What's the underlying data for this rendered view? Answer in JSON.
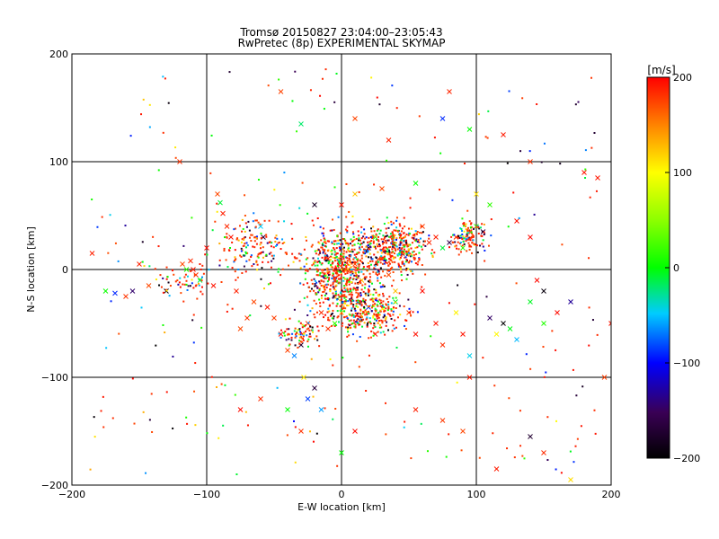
{
  "chart_data": {
    "type": "scatter",
    "title": "Tromsø 20150827 23:04:00–23:05:43",
    "subtitle": "RwPretec (8p) EXPERIMENTAL SKYMAP",
    "xlabel": "E-W location [km]",
    "ylabel": "N-S location [km]",
    "xlim": [
      -200,
      200
    ],
    "ylim": [
      -200,
      200
    ],
    "x_ticks": [
      "−200",
      "−100",
      "0",
      "100",
      "200"
    ],
    "y_ticks": [
      "−200",
      "−100",
      "0",
      "100",
      "200"
    ],
    "x_tick_values": [
      -200,
      -100,
      0,
      100,
      200
    ],
    "y_tick_values": [
      -200,
      -100,
      0,
      100,
      200
    ],
    "grid": true,
    "colorbar": {
      "label": "[m/s]",
      "range": [
        -200,
        200
      ],
      "tick_values": [
        200,
        100,
        0,
        -100,
        -200
      ],
      "tick_labels": [
        "200",
        "100",
        "0",
        "−100",
        "−200"
      ]
    },
    "marker_legend_note": "",
    "series": [
      {
        "marker": "x",
        "points": [
          [
            -185,
            15
          ],
          [
            -175,
            -20
          ],
          [
            -168,
            -22
          ],
          [
            -160,
            -25
          ],
          [
            -155,
            -20
          ],
          [
            -150,
            5
          ],
          [
            -143,
            -15
          ],
          [
            -130,
            -20
          ],
          [
            -118,
            5
          ],
          [
            -115,
            0
          ],
          [
            -112,
            8
          ],
          [
            -110,
            0
          ],
          [
            -108,
            -5
          ],
          [
            -105,
            -10
          ],
          [
            -100,
            20
          ],
          [
            -95,
            -15
          ],
          [
            -92,
            70
          ],
          [
            -90,
            62
          ],
          [
            -88,
            52
          ],
          [
            -85,
            40
          ],
          [
            -82,
            30
          ],
          [
            -78,
            -20
          ],
          [
            -75,
            -55
          ],
          [
            -70,
            -45
          ],
          [
            -65,
            -30
          ],
          [
            -60,
            40
          ],
          [
            -58,
            30
          ],
          [
            -55,
            -35
          ],
          [
            -50,
            -45
          ],
          [
            -45,
            -60
          ],
          [
            -40,
            -75
          ],
          [
            -35,
            -80
          ],
          [
            -30,
            -70
          ],
          [
            -28,
            -100
          ],
          [
            -25,
            -120
          ],
          [
            -20,
            -110
          ],
          [
            -15,
            -130
          ],
          [
            -5,
            -50
          ],
          [
            0,
            -40
          ],
          [
            5,
            0
          ],
          [
            10,
            5
          ],
          [
            15,
            -10
          ],
          [
            20,
            20
          ],
          [
            25,
            30
          ],
          [
            30,
            10
          ],
          [
            35,
            -5
          ],
          [
            40,
            -20
          ],
          [
            45,
            15
          ],
          [
            50,
            -40
          ],
          [
            55,
            -60
          ],
          [
            60,
            -20
          ],
          [
            70,
            -50
          ],
          [
            75,
            -70
          ],
          [
            85,
            -40
          ],
          [
            90,
            -60
          ],
          [
            95,
            -80
          ],
          [
            110,
            -45
          ],
          [
            115,
            -60
          ],
          [
            120,
            -50
          ],
          [
            125,
            -55
          ],
          [
            130,
            -65
          ],
          [
            140,
            -30
          ],
          [
            150,
            -50
          ],
          [
            160,
            -40
          ],
          [
            170,
            -30
          ],
          [
            -45,
            165
          ],
          [
            -30,
            135
          ],
          [
            10,
            140
          ],
          [
            35,
            120
          ],
          [
            75,
            140
          ],
          [
            80,
            165
          ],
          [
            95,
            130
          ],
          [
            120,
            125
          ],
          [
            140,
            100
          ],
          [
            180,
            90
          ],
          [
            190,
            85
          ],
          [
            195,
            -100
          ],
          [
            200,
            -50
          ],
          [
            -120,
            100
          ],
          [
            -20,
            60
          ],
          [
            0,
            60
          ],
          [
            10,
            70
          ],
          [
            30,
            75
          ],
          [
            55,
            80
          ],
          [
            100,
            70
          ],
          [
            110,
            60
          ],
          [
            130,
            45
          ],
          [
            140,
            30
          ],
          [
            145,
            -10
          ],
          [
            150,
            -20
          ],
          [
            -75,
            -130
          ],
          [
            -60,
            -120
          ],
          [
            -40,
            -130
          ],
          [
            -30,
            -150
          ],
          [
            0,
            -170
          ],
          [
            10,
            -150
          ],
          [
            55,
            -130
          ],
          [
            75,
            -140
          ],
          [
            90,
            -150
          ],
          [
            95,
            -100
          ],
          [
            140,
            -155
          ],
          [
            150,
            -170
          ],
          [
            115,
            -185
          ],
          [
            170,
            -195
          ],
          [
            60,
            40
          ],
          [
            70,
            30
          ],
          [
            80,
            25
          ],
          [
            90,
            20
          ],
          [
            95,
            35
          ],
          [
            100,
            40
          ],
          [
            105,
            35
          ],
          [
            85,
            30
          ],
          [
            75,
            20
          ],
          [
            65,
            25
          ],
          [
            45,
            15
          ],
          [
            40,
            -30
          ],
          [
            20,
            -35
          ],
          [
            25,
            -60
          ],
          [
            -15,
            -40
          ],
          [
            -10,
            -55
          ],
          [
            -25,
            -50
          ],
          [
            -5,
            -10
          ],
          [
            -10,
            10
          ]
        ]
      },
      {
        "marker": "dot",
        "points": []
      }
    ]
  }
}
